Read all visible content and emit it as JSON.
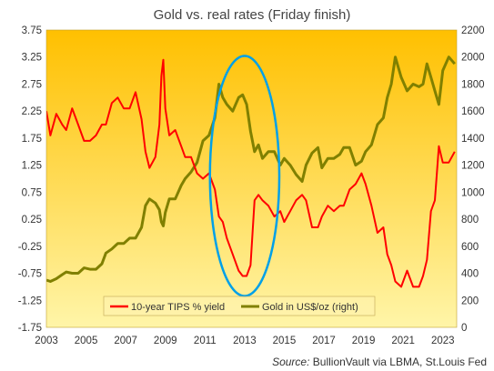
{
  "chart_data": {
    "type": "line",
    "title": "Gold vs. real rates (Friday finish)",
    "source_label": "Source:",
    "source_text": "BullionVault via LBMA, St.Louis Fed",
    "x_ticks": [
      "2003",
      "2005",
      "2007",
      "2009",
      "2011",
      "2013",
      "2015",
      "2017",
      "2019",
      "2021",
      "2023"
    ],
    "xlim": [
      2003.0,
      2023.7
    ],
    "left_axis": {
      "ylim": [
        -1.75,
        3.75
      ],
      "ticks": [
        "3.75",
        "3.25",
        "2.75",
        "2.25",
        "1.75",
        "1.25",
        "0.75",
        "0.25",
        "-0.25",
        "-0.75",
        "-1.25",
        "-1.75"
      ]
    },
    "right_axis": {
      "ylim": [
        0,
        2200
      ],
      "ticks": [
        "2200",
        "2000",
        "1800",
        "1600",
        "1400",
        "1200",
        "1000",
        "800",
        "600",
        "400",
        "200",
        "0"
      ]
    },
    "grid": false,
    "legend_position": "bottom-center",
    "background_gradient": [
      "#ffc000",
      "#fff5a8"
    ],
    "series": [
      {
        "name": "10-year TIPS % yield",
        "axis": "left",
        "color": "#ff0000",
        "x": [
          2003.0,
          2003.2,
          2003.5,
          2003.8,
          2004.0,
          2004.3,
          2004.6,
          2004.9,
          2005.2,
          2005.5,
          2005.8,
          2006.0,
          2006.3,
          2006.6,
          2006.9,
          2007.2,
          2007.5,
          2007.8,
          2008.0,
          2008.2,
          2008.5,
          2008.7,
          2008.8,
          2008.9,
          2009.0,
          2009.2,
          2009.5,
          2009.8,
          2010.0,
          2010.3,
          2010.6,
          2010.9,
          2011.2,
          2011.5,
          2011.7,
          2011.9,
          2012.1,
          2012.4,
          2012.7,
          2012.9,
          2013.1,
          2013.3,
          2013.5,
          2013.7,
          2013.9,
          2014.2,
          2014.5,
          2014.8,
          2015.0,
          2015.3,
          2015.6,
          2015.9,
          2016.1,
          2016.4,
          2016.7,
          2016.9,
          2017.2,
          2017.5,
          2017.8,
          2018.0,
          2018.3,
          2018.6,
          2018.9,
          2019.1,
          2019.4,
          2019.7,
          2020.0,
          2020.2,
          2020.4,
          2020.6,
          2020.9,
          2021.2,
          2021.5,
          2021.8,
          2022.0,
          2022.2,
          2022.4,
          2022.6,
          2022.8,
          2023.0,
          2023.3,
          2023.6
        ],
        "y": [
          2.25,
          1.8,
          2.2,
          2.0,
          1.9,
          2.3,
          2.0,
          1.7,
          1.7,
          1.8,
          2.0,
          2.0,
          2.4,
          2.5,
          2.3,
          2.3,
          2.6,
          2.1,
          1.5,
          1.2,
          1.4,
          2.0,
          2.9,
          3.2,
          2.3,
          1.8,
          1.9,
          1.6,
          1.4,
          1.4,
          1.1,
          1.0,
          1.1,
          0.8,
          0.3,
          0.2,
          -0.1,
          -0.4,
          -0.7,
          -0.8,
          -0.8,
          -0.6,
          0.6,
          0.7,
          0.6,
          0.5,
          0.3,
          0.4,
          0.2,
          0.4,
          0.6,
          0.7,
          0.6,
          0.1,
          0.1,
          0.3,
          0.5,
          0.4,
          0.5,
          0.5,
          0.8,
          0.9,
          1.1,
          0.9,
          0.5,
          0.0,
          0.1,
          -0.4,
          -0.6,
          -0.9,
          -1.0,
          -0.7,
          -1.0,
          -1.0,
          -0.8,
          -0.5,
          0.4,
          0.6,
          1.6,
          1.3,
          1.3,
          1.5
        ]
      },
      {
        "name": "Gold in US$/oz (right)",
        "axis": "right",
        "color": "#808000",
        "x": [
          2003.0,
          2003.2,
          2003.5,
          2003.8,
          2004.0,
          2004.3,
          2004.6,
          2004.9,
          2005.2,
          2005.5,
          2005.8,
          2006.0,
          2006.3,
          2006.6,
          2006.9,
          2007.2,
          2007.5,
          2007.8,
          2008.0,
          2008.2,
          2008.5,
          2008.7,
          2008.8,
          2008.9,
          2009.0,
          2009.2,
          2009.5,
          2009.8,
          2010.0,
          2010.3,
          2010.6,
          2010.9,
          2011.2,
          2011.5,
          2011.7,
          2011.9,
          2012.1,
          2012.4,
          2012.7,
          2012.9,
          2013.1,
          2013.3,
          2013.5,
          2013.7,
          2013.9,
          2014.2,
          2014.5,
          2014.8,
          2015.0,
          2015.3,
          2015.6,
          2015.9,
          2016.1,
          2016.4,
          2016.7,
          2016.9,
          2017.2,
          2017.5,
          2017.8,
          2018.0,
          2018.3,
          2018.6,
          2018.9,
          2019.1,
          2019.4,
          2019.7,
          2020.0,
          2020.2,
          2020.4,
          2020.6,
          2020.9,
          2021.2,
          2021.5,
          2021.8,
          2022.0,
          2022.2,
          2022.4,
          2022.6,
          2022.8,
          2023.0,
          2023.3,
          2023.6
        ],
        "y": [
          350,
          340,
          360,
          390,
          410,
          400,
          400,
          440,
          430,
          430,
          470,
          550,
          580,
          620,
          620,
          660,
          660,
          740,
          900,
          950,
          920,
          870,
          780,
          750,
          850,
          950,
          950,
          1050,
          1100,
          1150,
          1220,
          1380,
          1420,
          1550,
          1800,
          1700,
          1650,
          1600,
          1700,
          1720,
          1650,
          1450,
          1300,
          1350,
          1250,
          1300,
          1300,
          1200,
          1250,
          1200,
          1130,
          1080,
          1200,
          1290,
          1330,
          1180,
          1250,
          1250,
          1280,
          1330,
          1330,
          1200,
          1230,
          1300,
          1350,
          1500,
          1550,
          1700,
          1800,
          2000,
          1850,
          1750,
          1800,
          1780,
          1800,
          1950,
          1850,
          1750,
          1650,
          1900,
          2000,
          1950
        ]
      }
    ],
    "annotation": {
      "type": "ellipse",
      "color": "#00a0e8",
      "center_x": 2013.0,
      "center_y_left": 1.05,
      "half_width_years": 1.75,
      "half_height_left": 2.22
    }
  }
}
